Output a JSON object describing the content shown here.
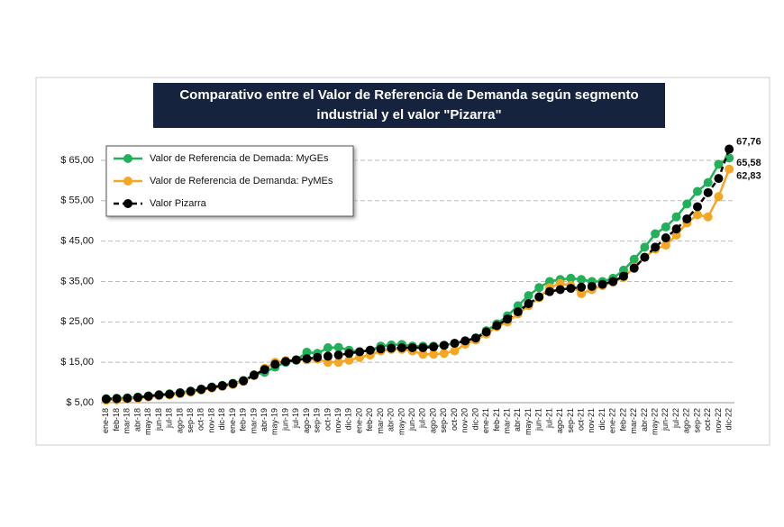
{
  "chart_data": {
    "type": "line",
    "title": [
      "Comparativo entre el Valor de Referencia de Demanda según segmento",
      "industrial y el valor \"Pizarra\""
    ],
    "categories": [
      "ene-18",
      "feb-18",
      "mar-18",
      "abr-18",
      "may-18",
      "jun-18",
      "jul-18",
      "ago-18",
      "sep-18",
      "oct-18",
      "nov-18",
      "dic-18",
      "ene-19",
      "feb-19",
      "mar-19",
      "abr-19",
      "may-19",
      "jun-19",
      "jul-19",
      "ago-19",
      "sep-19",
      "oct-19",
      "nov-19",
      "dic-19",
      "ene-20",
      "feb-20",
      "mar-20",
      "abr-20",
      "may-20",
      "jun-20",
      "jul-20",
      "ago-20",
      "sep-20",
      "oct-20",
      "nov-20",
      "dic-20",
      "ene-21",
      "feb-21",
      "mar-21",
      "abr-21",
      "may-21",
      "jun-21",
      "jul-21",
      "ago-21",
      "sep-21",
      "oct-21",
      "nov-21",
      "dic-21",
      "ene-22",
      "feb-22",
      "mar-22",
      "abr-22",
      "may-22",
      "jun-22",
      "jul-22",
      "ago-22",
      "sep-22",
      "oct-22",
      "nov-22",
      "dic-22"
    ],
    "series": [
      {
        "name": "Valor de Referencia de Demada: MyGEs",
        "color": "#22b05a",
        "dashed": false,
        "values": [
          6.0,
          6.1,
          6.2,
          6.4,
          6.7,
          7.0,
          7.2,
          7.5,
          7.9,
          8.4,
          8.9,
          9.3,
          9.8,
          10.5,
          11.9,
          12.5,
          13.8,
          15.0,
          15.5,
          17.5,
          17.2,
          18.6,
          18.7,
          18.0,
          17.6,
          18.0,
          19.0,
          19.3,
          19.4,
          19.0,
          19.0,
          19.0,
          19.2,
          19.7,
          20.3,
          21.0,
          22.8,
          24.5,
          26.5,
          29.0,
          31.5,
          33.5,
          35.0,
          35.5,
          35.8,
          35.5,
          35.0,
          35.0,
          35.8,
          37.8,
          40.5,
          43.5,
          46.8,
          48.5,
          51.0,
          54.2,
          57.3,
          59.5,
          64.0,
          65.58
        ],
        "value_labels": [
          null,
          null,
          null,
          null,
          null,
          null,
          null,
          null,
          null,
          null,
          null,
          null,
          null,
          null,
          null,
          null,
          null,
          null,
          null,
          null,
          null,
          null,
          null,
          null,
          null,
          null,
          null,
          null,
          null,
          null,
          null,
          null,
          null,
          null,
          null,
          null,
          null,
          null,
          null,
          null,
          null,
          null,
          null,
          null,
          null,
          null,
          null,
          null,
          null,
          null,
          null,
          null,
          null,
          null,
          null,
          null,
          null,
          null,
          null,
          "65,58"
        ]
      },
      {
        "name": "Valor de Referencia de Demanda: PyMEs",
        "color": "#f5a623",
        "dashed": false,
        "values": [
          5.6,
          5.7,
          5.9,
          6.1,
          6.4,
          6.7,
          6.9,
          7.2,
          7.6,
          8.1,
          8.6,
          9.0,
          9.5,
          10.3,
          11.7,
          13.5,
          15.0,
          15.4,
          15.6,
          15.6,
          15.8,
          15.0,
          15.0,
          15.5,
          16.2,
          16.8,
          17.8,
          18.2,
          18.2,
          17.8,
          17.0,
          17.0,
          17.2,
          17.8,
          19.5,
          20.5,
          22.0,
          23.8,
          25.0,
          27.0,
          29.0,
          31.0,
          33.5,
          34.5,
          34.0,
          32.0,
          33.0,
          34.0,
          34.8,
          36.0,
          38.5,
          41.0,
          43.0,
          44.0,
          46.5,
          49.5,
          51.5,
          51.0,
          56.0,
          62.83
        ],
        "value_labels": [
          null,
          null,
          null,
          null,
          null,
          null,
          null,
          null,
          null,
          null,
          null,
          null,
          null,
          null,
          null,
          null,
          null,
          null,
          null,
          null,
          null,
          null,
          null,
          null,
          null,
          null,
          null,
          null,
          null,
          null,
          null,
          null,
          null,
          null,
          null,
          null,
          null,
          null,
          null,
          null,
          null,
          null,
          null,
          null,
          null,
          null,
          null,
          null,
          null,
          null,
          null,
          null,
          null,
          null,
          null,
          null,
          null,
          null,
          null,
          "62,83"
        ]
      },
      {
        "name": "Valor Pizarra",
        "color": "#000000",
        "dashed": true,
        "values": [
          5.9,
          6.0,
          6.1,
          6.3,
          6.6,
          6.9,
          7.1,
          7.4,
          7.8,
          8.3,
          8.8,
          9.2,
          9.7,
          10.4,
          11.8,
          13.2,
          14.5,
          15.2,
          15.6,
          15.9,
          16.2,
          16.5,
          16.8,
          17.2,
          17.6,
          18.0,
          18.3,
          18.5,
          18.6,
          18.6,
          18.6,
          18.8,
          19.2,
          19.7,
          20.3,
          21.0,
          22.5,
          24.1,
          25.7,
          27.5,
          29.5,
          31.2,
          32.5,
          33.0,
          33.3,
          33.6,
          33.8,
          34.3,
          35.0,
          36.3,
          38.3,
          41.0,
          43.5,
          45.8,
          48.0,
          50.5,
          53.5,
          57.0,
          60.5,
          67.76
        ],
        "value_labels": [
          null,
          null,
          null,
          null,
          null,
          null,
          null,
          null,
          null,
          null,
          null,
          null,
          null,
          null,
          null,
          null,
          null,
          null,
          null,
          null,
          null,
          null,
          null,
          null,
          null,
          null,
          null,
          null,
          null,
          null,
          null,
          null,
          null,
          null,
          null,
          null,
          null,
          null,
          null,
          null,
          null,
          null,
          null,
          null,
          null,
          null,
          null,
          null,
          null,
          null,
          null,
          null,
          null,
          null,
          null,
          null,
          null,
          null,
          null,
          "67,76"
        ]
      }
    ],
    "ylim": [
      5,
      69
    ],
    "yticks": [
      {
        "value": 5,
        "label": "$ 5,00"
      },
      {
        "value": 15,
        "label": "$ 15,00"
      },
      {
        "value": 25,
        "label": "$ 25,00"
      },
      {
        "value": 35,
        "label": "$ 35,00"
      },
      {
        "value": 45,
        "label": "$ 45,00"
      },
      {
        "value": 55,
        "label": "$ 55,00"
      },
      {
        "value": 65,
        "label": "$ 65,00"
      }
    ],
    "grid": true,
    "legend": "upper left"
  }
}
